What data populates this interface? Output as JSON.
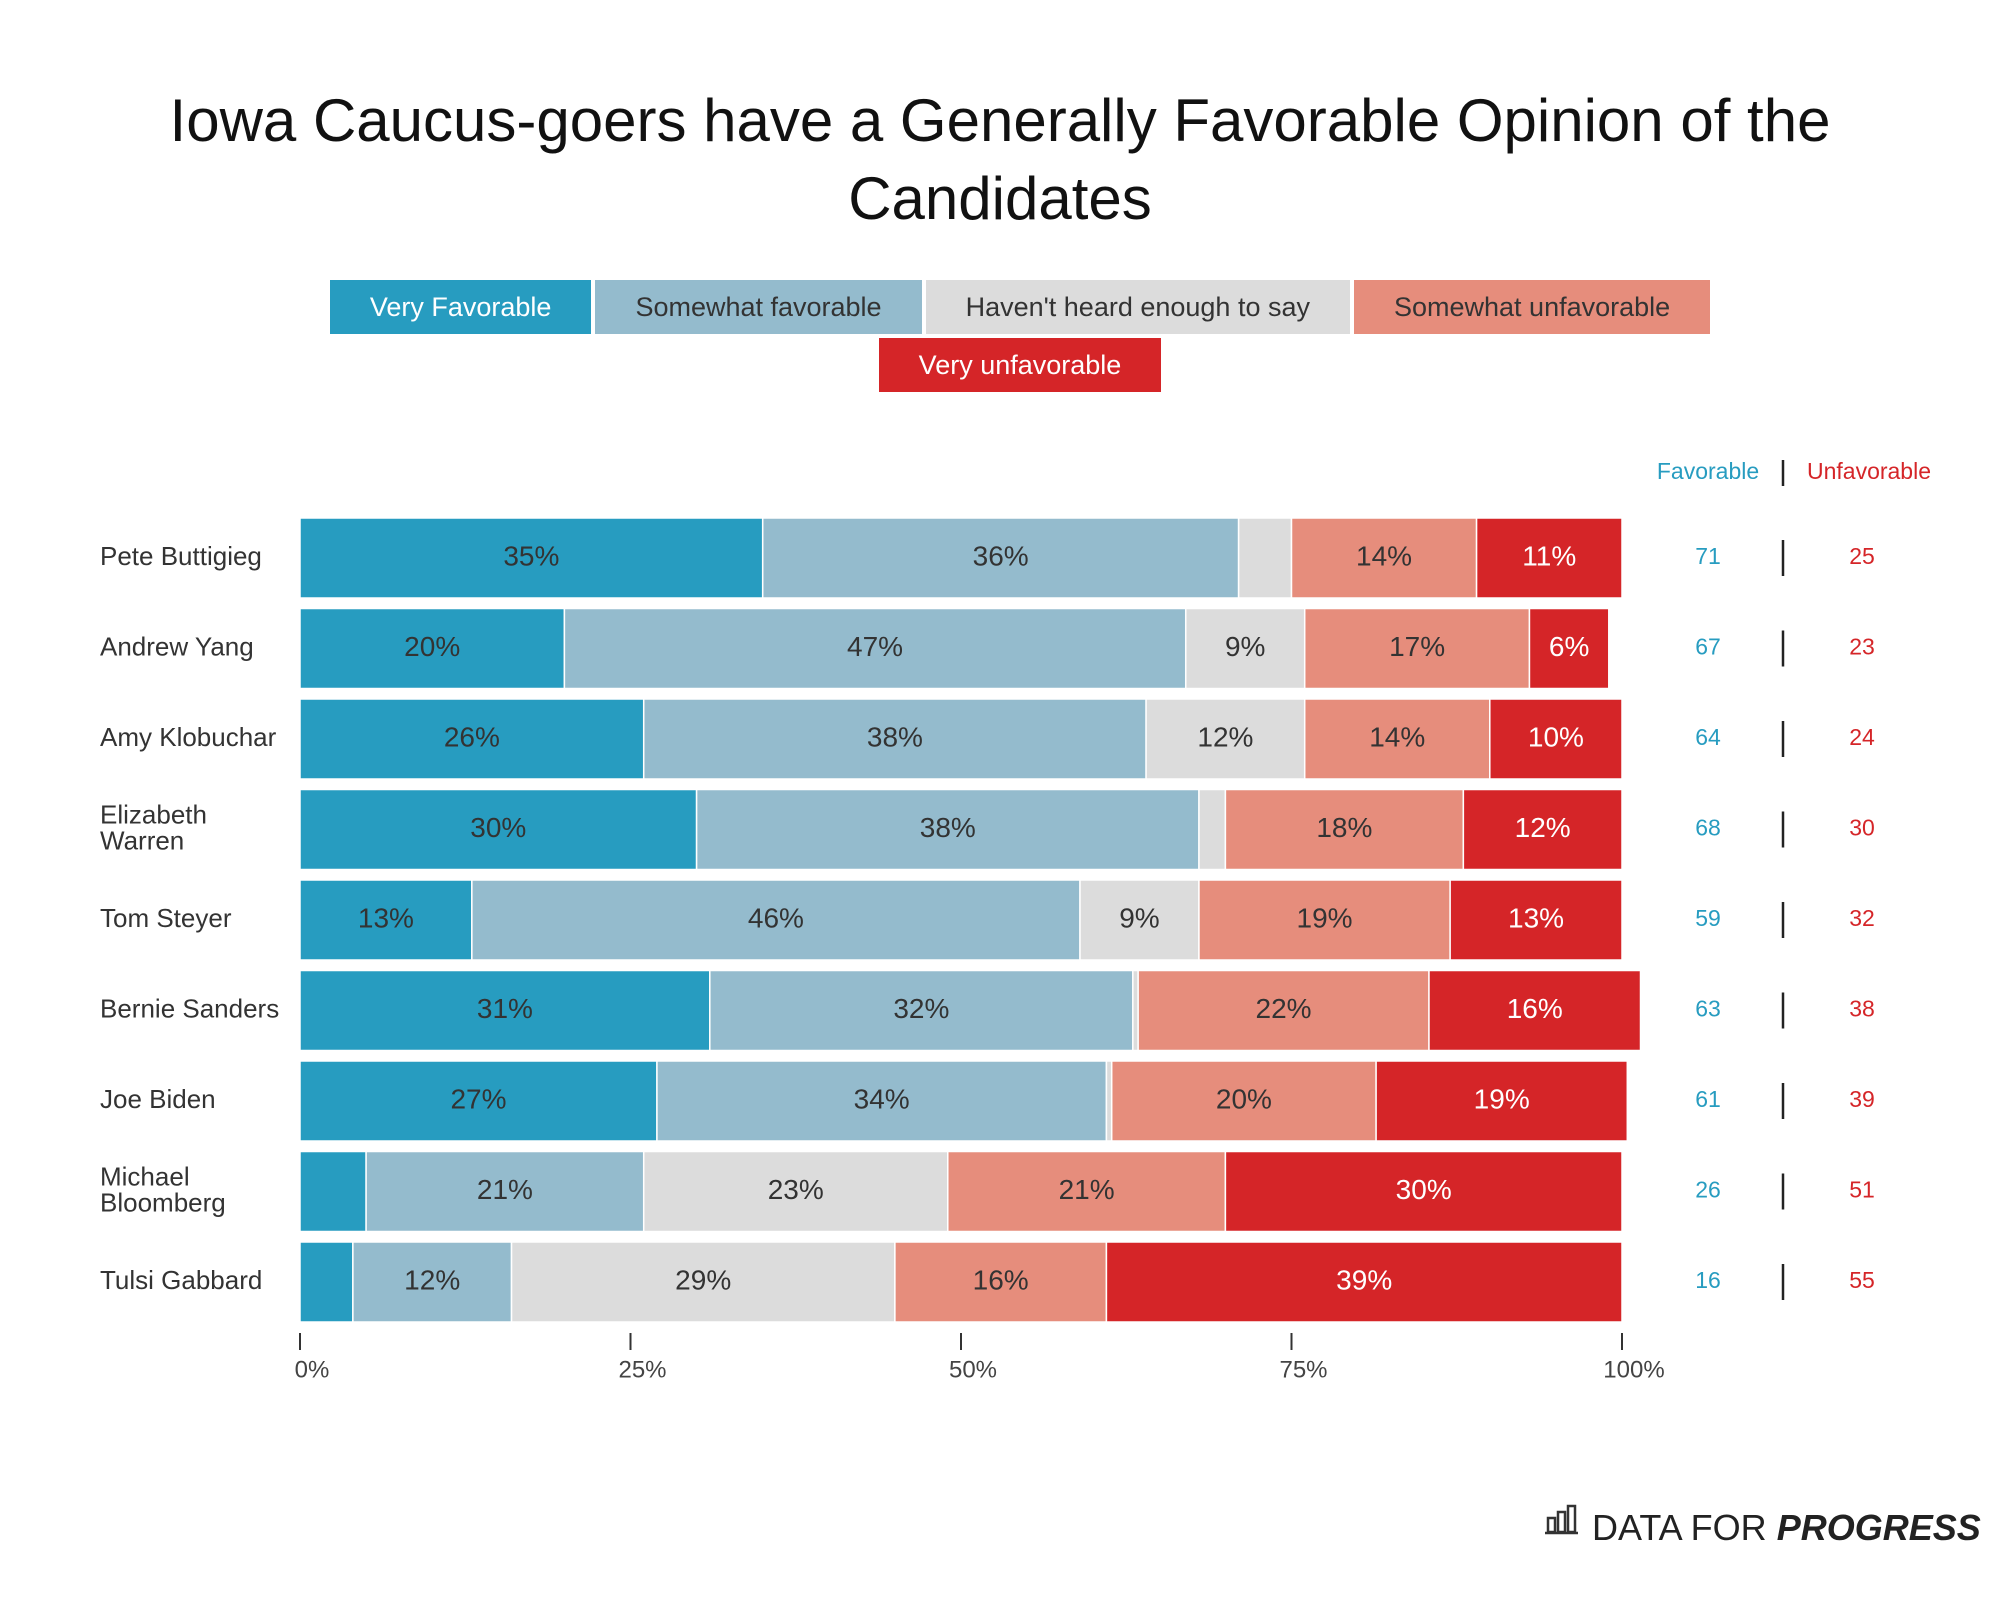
{
  "chart_data": {
    "type": "stacked_barh",
    "title": "Iowa Caucus-goers have a Generally Favorable Opinion of the Candidates",
    "categories": [
      "Pete Buttigieg",
      "Andrew Yang",
      "Amy Klobuchar",
      "Elizabeth Warren",
      "Tom Steyer",
      "Bernie Sanders",
      "Joe Biden",
      "Michael Bloomberg",
      "Tulsi Gabbard"
    ],
    "series": [
      {
        "name": "Very Favorable",
        "color": "#279cc0",
        "values": [
          35,
          20,
          26,
          30,
          13,
          31,
          27,
          5,
          4
        ],
        "value_labels": [
          "35%",
          "20%",
          "26%",
          "30%",
          "13%",
          "31%",
          "27%",
          null,
          null
        ]
      },
      {
        "name": "Somewhat favorable",
        "color": "#94bbcd",
        "values": [
          36,
          47,
          38,
          38,
          46,
          32,
          34,
          21,
          12
        ],
        "value_labels": [
          "36%",
          "47%",
          "38%",
          "38%",
          "46%",
          "32%",
          "34%",
          "21%",
          "12%"
        ]
      },
      {
        "name": "Haven't heard enough to say",
        "color": "#dcdcdc",
        "values": [
          4,
          9,
          12,
          2,
          9,
          0.4,
          0.4,
          23,
          29
        ],
        "value_labels": [
          null,
          "9%",
          "12%",
          null,
          "9%",
          null,
          null,
          "23%",
          "29%"
        ]
      },
      {
        "name": "Somewhat unfavorable",
        "color": "#e68d7c",
        "values": [
          14,
          17,
          14,
          18,
          19,
          22,
          20,
          21,
          16
        ],
        "value_labels": [
          "14%",
          "17%",
          "14%",
          "18%",
          "19%",
          "22%",
          "20%",
          "21%",
          "16%"
        ]
      },
      {
        "name": "Very unfavorable",
        "color": "#d52528",
        "values": [
          11,
          6,
          10,
          12,
          13,
          16,
          19,
          30,
          39
        ],
        "value_labels": [
          "11%",
          "6%",
          "10%",
          "12%",
          "13%",
          "16%",
          "19%",
          "30%",
          "39%"
        ]
      }
    ],
    "xlim": [
      0,
      100
    ],
    "xticks": [
      {
        "value": 0,
        "label": "0%"
      },
      {
        "value": 25,
        "label": "25%"
      },
      {
        "value": 50,
        "label": "50%"
      },
      {
        "value": 75,
        "label": "75%"
      },
      {
        "value": 100,
        "label": "100%"
      }
    ],
    "net_columns": {
      "favorable_header": "Favorable",
      "unfavorable_header": "Unfavorable",
      "favorable": [
        71,
        67,
        64,
        68,
        59,
        63,
        61,
        26,
        16
      ],
      "unfavorable": [
        25,
        23,
        24,
        30,
        32,
        38,
        39,
        51,
        55
      ]
    },
    "logo": {
      "text": "DATA FOR",
      "emphasis": "PROGRESS"
    }
  }
}
